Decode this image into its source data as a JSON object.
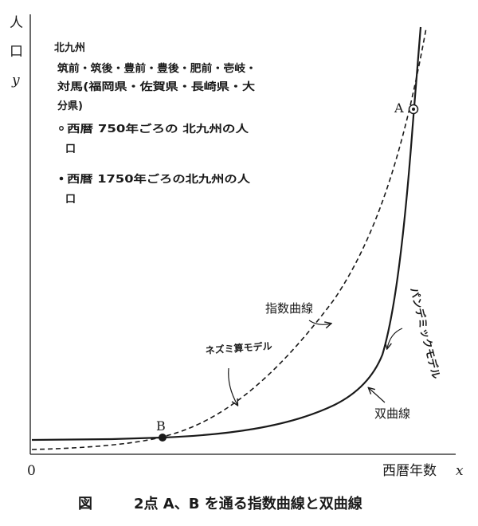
{
  "axes": {
    "y_title_char1": "人",
    "y_title_char2": "口",
    "y_var": "y",
    "x_title": "西暦年数",
    "x_var": "x",
    "origin": "0"
  },
  "notes": {
    "line1": "北九州",
    "line2": "筑前・筑後・豊前・豊後・肥前・壱岐・",
    "line3": "対馬(福岡県・佐賀県・長崎県・大",
    "line4": "分県)",
    "bullet1_a": "西暦 750年ごろの 北九州の人",
    "bullet1_b": "口",
    "bullet2_a": "西暦 1750年ごろの北九州の人",
    "bullet2_b": "口"
  },
  "curves": {
    "exponential_label": "指数曲線",
    "rat_model_label": "ネズミ算モデル",
    "pandemic_model_label": "パンデミックモデル",
    "hyperbolic_label": "双曲線"
  },
  "points": {
    "a_label": "A",
    "b_label": "B"
  },
  "caption": {
    "fig": "図",
    "text": "2点 A、B を通る指数曲線と双曲線"
  }
}
